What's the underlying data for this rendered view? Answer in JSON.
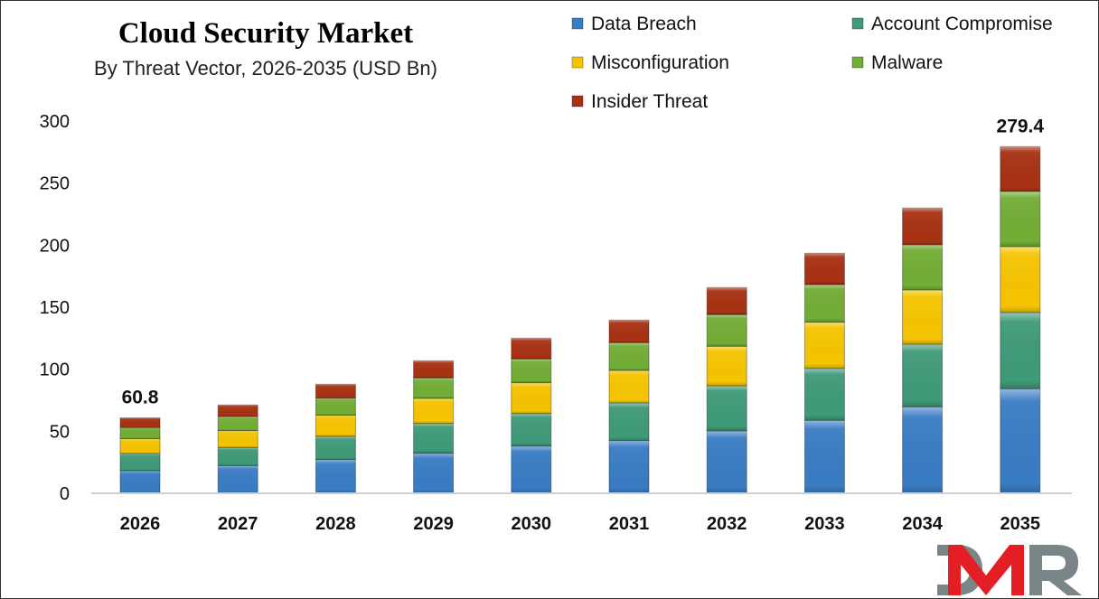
{
  "chart_data": {
    "type": "bar",
    "stacked": true,
    "title": "Cloud Security Market",
    "subtitle": "By Threat Vector, 2026-2035 (USD Bn)",
    "xlabel": "",
    "ylabel": "",
    "ylim": [
      0,
      300
    ],
    "yticks": [
      0,
      50,
      100,
      150,
      200,
      250,
      300
    ],
    "grid": false,
    "legend_position": "top-right",
    "categories": [
      "2026",
      "2027",
      "2028",
      "2029",
      "2030",
      "2031",
      "2032",
      "2033",
      "2034",
      "2035"
    ],
    "series": [
      {
        "name": "Data Breach",
        "color": "#3a7cc4",
        "values": [
          18.2,
          22.3,
          27.2,
          32.3,
          38.1,
          42.5,
          50.3,
          58.8,
          69.7,
          84.3
        ]
      },
      {
        "name": "Account Compromise",
        "color": "#3f9a78",
        "values": [
          13.8,
          14.6,
          18.7,
          24.0,
          26.2,
          30.3,
          36.4,
          41.9,
          50.5,
          61.4
        ]
      },
      {
        "name": "Misconfiguration",
        "color": "#f5c400",
        "values": [
          12.0,
          13.6,
          17.0,
          20.2,
          24.8,
          26.2,
          31.8,
          37.2,
          43.7,
          53.1
        ]
      },
      {
        "name": "Malware",
        "color": "#72ad35",
        "values": [
          9.0,
          11.4,
          13.8,
          16.5,
          19.2,
          22.4,
          25.5,
          30.3,
          36.4,
          44.5
        ]
      },
      {
        "name": "Insider Threat",
        "color": "#a83214",
        "values": [
          7.8,
          9.3,
          11.2,
          13.8,
          16.7,
          18.2,
          21.8,
          25.3,
          29.6,
          36.1
        ]
      }
    ],
    "data_labels": [
      {
        "category": "2026",
        "text": "60.8"
      },
      {
        "category": "2035",
        "text": "279.4"
      }
    ]
  },
  "logo": {
    "text": "DMR",
    "colors": [
      "#7a8587",
      "#e31e24",
      "#7a8587"
    ]
  }
}
